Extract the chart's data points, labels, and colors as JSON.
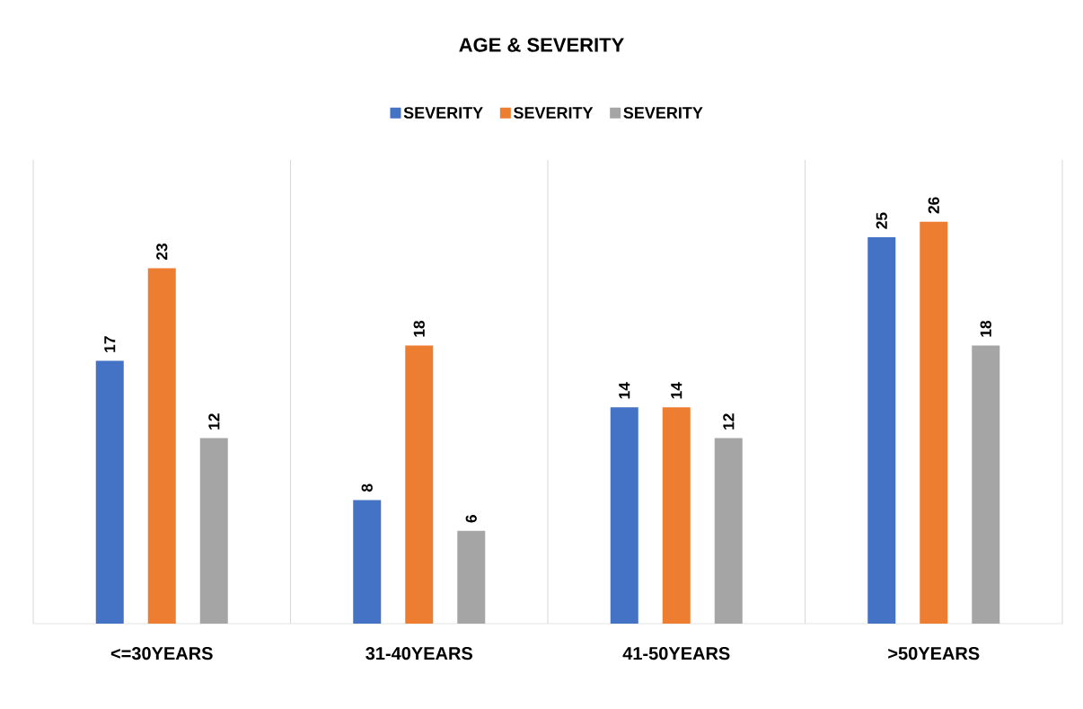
{
  "chart_data": {
    "type": "bar",
    "title": "AGE & SEVERITY",
    "categories": [
      "<=30YEARS",
      "31-40YEARS",
      "41-50YEARS",
      ">50YEARS"
    ],
    "series": [
      {
        "name": "SEVERITY",
        "color": "#4472c4",
        "values": [
          17,
          8,
          14,
          25
        ]
      },
      {
        "name": "SEVERITY",
        "color": "#ed7d31",
        "values": [
          23,
          18,
          14,
          26
        ]
      },
      {
        "name": "SEVERITY",
        "color": "#a5a5a5",
        "values": [
          12,
          6,
          12,
          18
        ]
      }
    ],
    "ylim": [
      0,
      30
    ],
    "tick_labels": "x",
    "data_labels": true,
    "grid": "x",
    "legend": "top"
  }
}
